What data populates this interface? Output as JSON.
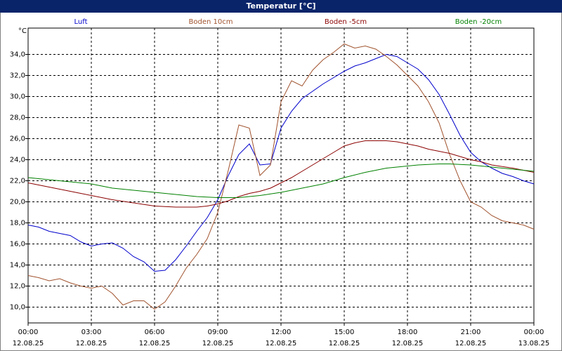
{
  "chart_data": {
    "type": "line",
    "title": "Temperatur [°C]",
    "y_unit": "°C",
    "x": [
      0,
      0.5,
      1,
      1.5,
      2,
      2.5,
      3,
      3.5,
      4,
      4.5,
      5,
      5.5,
      6,
      6.5,
      7,
      7.5,
      8,
      8.5,
      9,
      9.5,
      10,
      10.5,
      11,
      11.5,
      12,
      12.5,
      13,
      13.5,
      14,
      14.5,
      15,
      15.5,
      16,
      16.5,
      17,
      17.5,
      18,
      18.5,
      19,
      19.5,
      20,
      20.5,
      21,
      21.5,
      22,
      22.5,
      23,
      23.5,
      24
    ],
    "xlim": [
      0,
      24
    ],
    "xticks": [
      {
        "value": 0,
        "label": "00:00"
      },
      {
        "value": 3,
        "label": "03:00"
      },
      {
        "value": 6,
        "label": "06:00"
      },
      {
        "value": 9,
        "label": "09:00"
      },
      {
        "value": 12,
        "label": "12:00"
      },
      {
        "value": 15,
        "label": "15:00"
      },
      {
        "value": 18,
        "label": "18:00"
      },
      {
        "value": 21,
        "label": "21:00"
      },
      {
        "value": 24,
        "label": "00:00"
      }
    ],
    "xtick_dates": [
      "12.08.25",
      "12.08.25",
      "12.08.25",
      "12.08.25",
      "12.08.25",
      "12.08.25",
      "12.08.25",
      "12.08.25",
      "13.08.25"
    ],
    "ylim": [
      8.5,
      36.5
    ],
    "yticks": [
      {
        "value": 10,
        "label": "10,0"
      },
      {
        "value": 12,
        "label": "12,0"
      },
      {
        "value": 14,
        "label": "14,0"
      },
      {
        "value": 16,
        "label": "16,0"
      },
      {
        "value": 18,
        "label": "18,0"
      },
      {
        "value": 20,
        "label": "20,0"
      },
      {
        "value": 22,
        "label": "22,0"
      },
      {
        "value": 24,
        "label": "24,0"
      },
      {
        "value": 26,
        "label": "26,0"
      },
      {
        "value": 28,
        "label": "28,0"
      },
      {
        "value": 30,
        "label": "30,0"
      },
      {
        "value": 32,
        "label": "32,0"
      },
      {
        "value": 34,
        "label": "34,0"
      }
    ],
    "grid": true,
    "series": [
      {
        "name": "Luft",
        "color": "#0000cc",
        "values": [
          17.8,
          17.6,
          17.2,
          17.0,
          16.8,
          16.2,
          15.8,
          16.0,
          16.1,
          15.6,
          14.8,
          14.3,
          13.4,
          13.5,
          14.5,
          15.8,
          17.2,
          18.5,
          20.2,
          22.5,
          24.5,
          25.5,
          23.5,
          23.6,
          27.0,
          28.6,
          29.8,
          30.5,
          31.2,
          31.8,
          32.4,
          32.9,
          33.2,
          33.6,
          34.0,
          33.8,
          33.2,
          32.6,
          31.6,
          30.2,
          28.3,
          26.3,
          24.7,
          23.8,
          23.2,
          22.7,
          22.4,
          22.0,
          21.7
        ]
      },
      {
        "name": "Boden 10cm",
        "color": "#a0522d",
        "values": [
          13.0,
          12.8,
          12.5,
          12.7,
          12.3,
          12.0,
          11.8,
          12.0,
          11.3,
          10.2,
          10.6,
          10.6,
          9.8,
          10.5,
          12.0,
          13.7,
          15.0,
          16.5,
          19.0,
          23.0,
          27.3,
          27.0,
          22.5,
          23.5,
          29.5,
          31.5,
          31.0,
          32.5,
          33.5,
          34.2,
          35.0,
          34.6,
          34.8,
          34.5,
          33.8,
          33.0,
          32.0,
          31.0,
          29.5,
          27.5,
          24.5,
          22.0,
          20.0,
          19.5,
          18.7,
          18.2,
          18.0,
          17.8,
          17.4
        ]
      },
      {
        "name": "Boden -5cm",
        "color": "#8b0000",
        "values": [
          21.8,
          21.6,
          21.4,
          21.2,
          21.0,
          20.8,
          20.6,
          20.4,
          20.2,
          20.05,
          19.9,
          19.75,
          19.6,
          19.55,
          19.5,
          19.5,
          19.5,
          19.6,
          19.8,
          20.1,
          20.5,
          20.8,
          21.0,
          21.3,
          21.8,
          22.3,
          22.9,
          23.5,
          24.1,
          24.7,
          25.3,
          25.6,
          25.8,
          25.8,
          25.8,
          25.7,
          25.5,
          25.3,
          25.0,
          24.8,
          24.6,
          24.3,
          24.0,
          23.8,
          23.5,
          23.35,
          23.2,
          23.0,
          22.8
        ]
      },
      {
        "name": "Boden -20cm",
        "color": "#008000",
        "values": [
          22.3,
          22.2,
          22.1,
          22.0,
          21.9,
          21.8,
          21.7,
          21.5,
          21.3,
          21.2,
          21.1,
          21.0,
          20.9,
          20.8,
          20.7,
          20.6,
          20.5,
          20.45,
          20.4,
          20.4,
          20.4,
          20.5,
          20.6,
          20.75,
          20.9,
          21.1,
          21.3,
          21.5,
          21.7,
          22.0,
          22.3,
          22.55,
          22.8,
          23.0,
          23.2,
          23.3,
          23.4,
          23.5,
          23.55,
          23.6,
          23.6,
          23.55,
          23.5,
          23.4,
          23.3,
          23.2,
          23.1,
          23.0,
          22.9
        ]
      }
    ]
  }
}
